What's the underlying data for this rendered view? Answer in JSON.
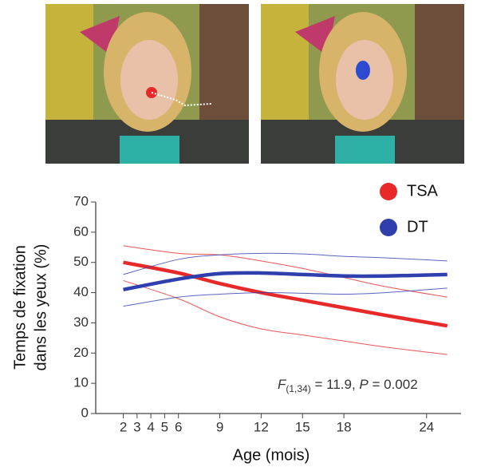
{
  "chart_data": {
    "type": "line",
    "xlabel": "Age (mois)",
    "ylabel": [
      "Temps de fixation",
      "dans les yeux (%)"
    ],
    "x": [
      2,
      6,
      9,
      12,
      15,
      18,
      21,
      25.5
    ],
    "series": [
      {
        "name": "TSA",
        "color": "#e8292a",
        "values": [
          50,
          46.5,
          43,
          40,
          37.5,
          35,
          32.5,
          29
        ],
        "lower": [
          44,
          38,
          32,
          28,
          26,
          24,
          22,
          19.5
        ],
        "upper": [
          55.5,
          53,
          52.5,
          50.5,
          48,
          45,
          42,
          38.5
        ]
      },
      {
        "name": "DT",
        "color": "#2f3fae",
        "values": [
          41,
          44.5,
          46.3,
          46.5,
          46,
          45.5,
          45.5,
          46
        ],
        "lower": [
          35.5,
          38.5,
          39.5,
          40,
          39.8,
          39.5,
          40,
          41.5
        ],
        "upper": [
          46,
          51,
          52.5,
          53,
          52.8,
          52,
          51.5,
          50.5
        ]
      }
    ],
    "xlim": [
      0,
      26.5
    ],
    "xticks": [
      2,
      3,
      4,
      5,
      6,
      9,
      12,
      15,
      18,
      24
    ],
    "ylim": [
      0,
      70
    ],
    "yticks": [
      0,
      10,
      20,
      30,
      40,
      50,
      60,
      70
    ],
    "legend_position": "top-right",
    "annotation": {
      "f": "F",
      "df": "(1,34)",
      "f_value": " = 11.9, ",
      "p": "P",
      "p_value": " = 0.002"
    }
  }
}
